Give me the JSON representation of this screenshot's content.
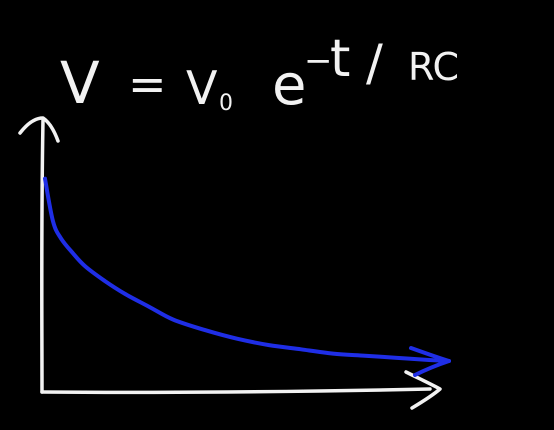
{
  "equation": {
    "text": "V = V₀ e^(−t/RC)",
    "lhs": "V",
    "equals": "=",
    "coefficient": "V",
    "coefficient_subscript": "0",
    "base": "e",
    "exponent_sign": "−",
    "exponent_numerator": "t",
    "exponent_slash": "/",
    "exponent_denominator": "RC"
  },
  "colors": {
    "background": "#000000",
    "chalk": "#f2f2f2",
    "curve": "#1f2ee6"
  },
  "chart_data": {
    "type": "line",
    "title": "",
    "xlabel": "",
    "ylabel": "",
    "grid": false,
    "legend": "none",
    "axes_arrows": true,
    "xlim": [
      0,
      5
    ],
    "ylim": [
      0,
      1.05
    ],
    "series": [
      {
        "x": [
          0,
          0.1,
          0.2,
          0.35,
          0.5,
          0.75,
          1.0,
          1.3,
          1.6,
          2.0,
          2.4,
          2.8,
          3.2,
          3.6,
          4.0,
          4.4,
          4.8
        ],
        "y": [
          1.0,
          0.8,
          0.72,
          0.65,
          0.59,
          0.52,
          0.46,
          0.4,
          0.34,
          0.29,
          0.25,
          0.22,
          0.2,
          0.18,
          0.17,
          0.16,
          0.15
        ]
      }
    ]
  }
}
